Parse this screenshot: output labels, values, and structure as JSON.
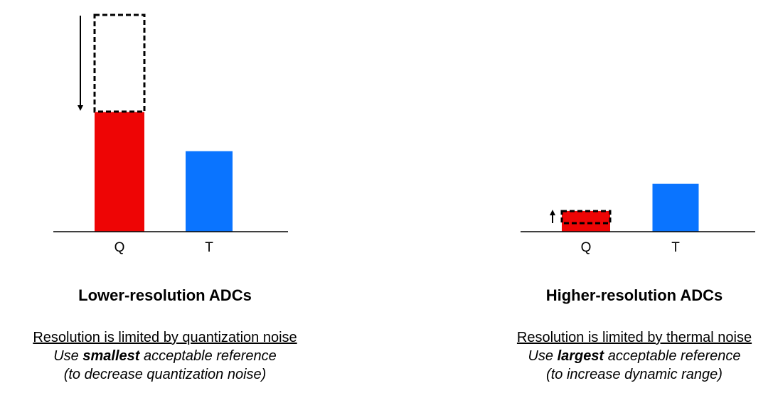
{
  "chart_data": [
    {
      "type": "bar",
      "title": "Lower-resolution ADCs",
      "categories": [
        "Q",
        "T"
      ],
      "values": [
        55,
        37
      ],
      "colors": [
        "#ee0505",
        "#0a74ff"
      ],
      "ylim": [
        0,
        100
      ],
      "notes": {
        "line1": "Resolution is limited by quantization noise",
        "line2": [
          "Use ",
          "smallest",
          " acceptable reference"
        ],
        "line3": "(to decrease quantization noise)"
      }
    },
    {
      "type": "bar",
      "title": "Higher-resolution ADCs",
      "categories": [
        "Q",
        "T"
      ],
      "values": [
        9.5,
        22
      ],
      "colors": [
        "#ee0505",
        "#0a74ff"
      ],
      "ylim": [
        0,
        100
      ],
      "notes": {
        "line1": "Resolution is limited by thermal noise",
        "line2": [
          "Use ",
          "largest",
          " acceptable reference"
        ],
        "line3": "(to increase dynamic range)"
      }
    }
  ]
}
